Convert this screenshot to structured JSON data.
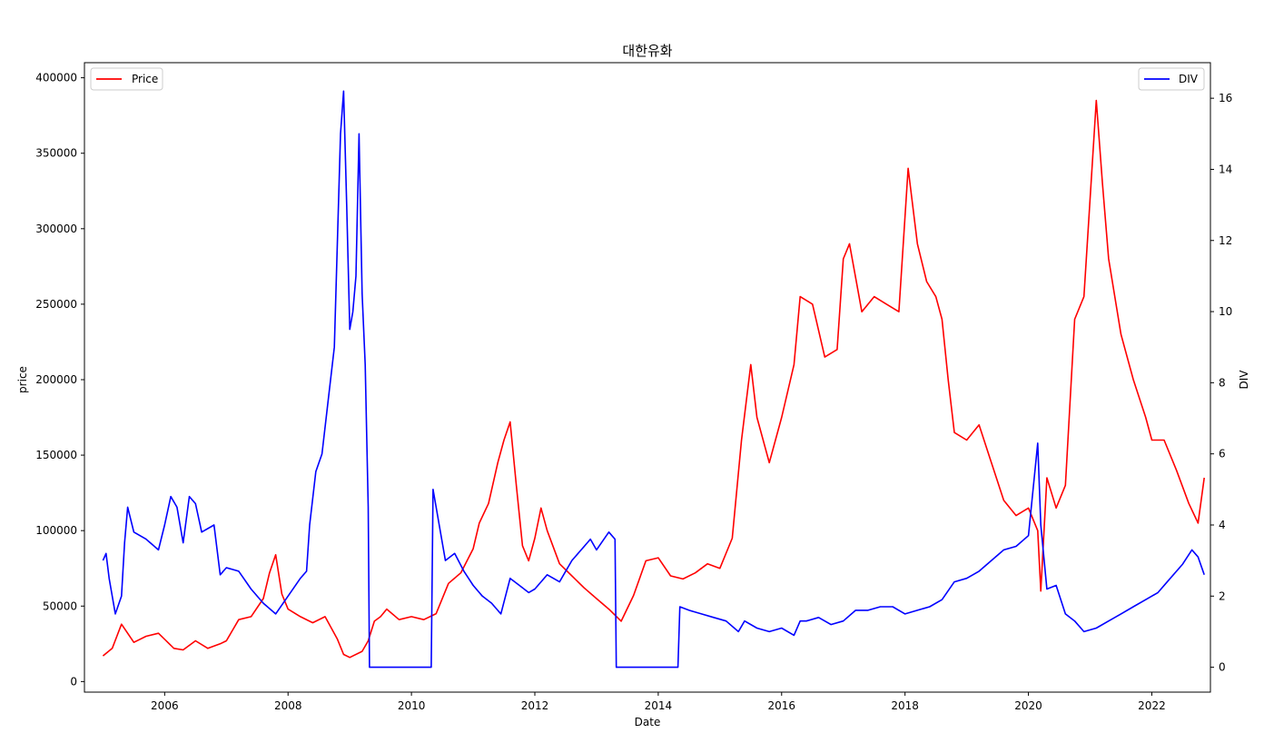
{
  "chart_data": {
    "type": "line",
    "title": "대한유화",
    "xlabel": "Date",
    "ylabel_left": "price",
    "ylabel_right": "DIV",
    "xlim": [
      2004.7,
      2022.95
    ],
    "ylim_left": [
      -7000,
      410000
    ],
    "ylim_right": [
      -0.7,
      17.0
    ],
    "x_ticks": [
      2006,
      2008,
      2010,
      2012,
      2014,
      2016,
      2018,
      2020,
      2022
    ],
    "y_ticks_left": [
      0,
      50000,
      100000,
      150000,
      200000,
      250000,
      300000,
      350000,
      400000
    ],
    "y_ticks_right": [
      0,
      2,
      4,
      6,
      8,
      10,
      12,
      14,
      16
    ],
    "grid": false,
    "legend_left": "upper-left",
    "legend_right": "upper-right",
    "series": [
      {
        "name": "Price",
        "axis": "left",
        "color": "#ff0000",
        "x": [
          2005.0,
          2005.15,
          2005.3,
          2005.5,
          2005.7,
          2005.9,
          2006.0,
          2006.15,
          2006.3,
          2006.5,
          2006.7,
          2006.9,
          2007.0,
          2007.2,
          2007.4,
          2007.6,
          2007.7,
          2007.8,
          2007.9,
          2008.0,
          2008.2,
          2008.4,
          2008.6,
          2008.8,
          2008.9,
          2009.0,
          2009.2,
          2009.3,
          2009.4,
          2009.5,
          2009.6,
          2009.8,
          2010.0,
          2010.2,
          2010.4,
          2010.6,
          2010.8,
          2011.0,
          2011.1,
          2011.25,
          2011.4,
          2011.5,
          2011.6,
          2011.7,
          2011.8,
          2011.9,
          2012.0,
          2012.1,
          2012.2,
          2012.4,
          2012.6,
          2012.8,
          2013.0,
          2013.2,
          2013.4,
          2013.6,
          2013.8,
          2014.0,
          2014.2,
          2014.4,
          2014.6,
          2014.8,
          2015.0,
          2015.2,
          2015.35,
          2015.5,
          2015.6,
          2015.8,
          2016.0,
          2016.2,
          2016.3,
          2016.5,
          2016.7,
          2016.9,
          2017.0,
          2017.1,
          2017.3,
          2017.5,
          2017.7,
          2017.9,
          2018.05,
          2018.2,
          2018.35,
          2018.5,
          2018.6,
          2018.7,
          2018.8,
          2019.0,
          2019.2,
          2019.4,
          2019.6,
          2019.8,
          2020.0,
          2020.15,
          2020.2,
          2020.3,
          2020.45,
          2020.6,
          2020.75,
          2020.9,
          2021.0,
          2021.1,
          2021.2,
          2021.3,
          2021.5,
          2021.7,
          2021.9,
          2022.0,
          2022.2,
          2022.4,
          2022.6,
          2022.75,
          2022.85
        ],
        "values": [
          17000,
          22000,
          38000,
          26000,
          30000,
          32000,
          28000,
          22000,
          21000,
          27000,
          22000,
          25000,
          27000,
          41000,
          43000,
          55000,
          72000,
          84000,
          58000,
          48000,
          43000,
          39000,
          43000,
          28000,
          18000,
          16000,
          20000,
          27000,
          40000,
          43000,
          48000,
          41000,
          43000,
          41000,
          45000,
          65000,
          72000,
          88000,
          105000,
          118000,
          145000,
          160000,
          172000,
          130000,
          90000,
          80000,
          95000,
          115000,
          100000,
          78000,
          70000,
          62000,
          55000,
          48000,
          40000,
          57000,
          80000,
          82000,
          70000,
          68000,
          72000,
          78000,
          75000,
          95000,
          160000,
          210000,
          175000,
          145000,
          175000,
          210000,
          255000,
          250000,
          215000,
          220000,
          280000,
          290000,
          245000,
          255000,
          250000,
          245000,
          340000,
          290000,
          265000,
          255000,
          240000,
          200000,
          165000,
          160000,
          170000,
          145000,
          120000,
          110000,
          115000,
          100000,
          60000,
          135000,
          115000,
          130000,
          240000,
          255000,
          320000,
          385000,
          330000,
          280000,
          230000,
          200000,
          175000,
          160000,
          160000,
          140000,
          118000,
          105000,
          135000
        ]
      },
      {
        "name": "DIV",
        "axis": "right",
        "color": "#0000ff",
        "x": [
          2005.0,
          2005.05,
          2005.1,
          2005.2,
          2005.3,
          2005.35,
          2005.4,
          2005.5,
          2005.7,
          2005.9,
          2006.0,
          2006.1,
          2006.2,
          2006.3,
          2006.4,
          2006.5,
          2006.6,
          2006.8,
          2006.9,
          2007.0,
          2007.2,
          2007.4,
          2007.6,
          2007.8,
          2008.0,
          2008.2,
          2008.3,
          2008.35,
          2008.45,
          2008.55,
          2008.65,
          2008.75,
          2008.85,
          2008.9,
          2008.95,
          2009.0,
          2009.05,
          2009.1,
          2009.15,
          2009.2,
          2009.25,
          2009.3,
          2009.32,
          2010.32,
          2010.35,
          2010.45,
          2010.55,
          2010.7,
          2010.85,
          2011.0,
          2011.15,
          2011.3,
          2011.45,
          2011.6,
          2011.75,
          2011.9,
          2012.0,
          2012.2,
          2012.4,
          2012.6,
          2012.8,
          2012.9,
          2013.0,
          2013.2,
          2013.3,
          2013.32,
          2014.32,
          2014.35,
          2014.5,
          2014.7,
          2014.9,
          2015.1,
          2015.3,
          2015.4,
          2015.6,
          2015.8,
          2016.0,
          2016.2,
          2016.3,
          2016.4,
          2016.6,
          2016.8,
          2017.0,
          2017.2,
          2017.4,
          2017.6,
          2017.8,
          2018.0,
          2018.2,
          2018.4,
          2018.6,
          2018.8,
          2019.0,
          2019.2,
          2019.4,
          2019.6,
          2019.8,
          2020.0,
          2020.15,
          2020.2,
          2020.3,
          2020.45,
          2020.6,
          2020.75,
          2020.9,
          2021.1,
          2021.3,
          2021.5,
          2021.7,
          2021.9,
          2022.1,
          2022.3,
          2022.5,
          2022.65,
          2022.75,
          2022.85
        ],
        "values": [
          3.0,
          3.2,
          2.5,
          1.5,
          2.0,
          3.5,
          4.5,
          3.8,
          3.6,
          3.3,
          4.0,
          4.8,
          4.5,
          3.5,
          4.8,
          4.6,
          3.8,
          4.0,
          2.6,
          2.8,
          2.7,
          2.2,
          1.8,
          1.5,
          2.0,
          2.5,
          2.7,
          4.0,
          5.5,
          6.0,
          7.5,
          9.0,
          15.0,
          16.2,
          13.0,
          9.5,
          10.0,
          11.0,
          15.0,
          10.5,
          8.5,
          4.5,
          0,
          0,
          5.0,
          4.0,
          3.0,
          3.2,
          2.7,
          2.3,
          2.0,
          1.8,
          1.5,
          2.5,
          2.3,
          2.1,
          2.2,
          2.6,
          2.4,
          3.0,
          3.4,
          3.6,
          3.3,
          3.8,
          3.6,
          0,
          0,
          1.7,
          1.6,
          1.5,
          1.4,
          1.3,
          1.0,
          1.3,
          1.1,
          1.0,
          1.1,
          0.9,
          1.3,
          1.3,
          1.4,
          1.2,
          1.3,
          1.6,
          1.6,
          1.7,
          1.7,
          1.5,
          1.6,
          1.7,
          1.9,
          2.4,
          2.5,
          2.7,
          3.0,
          3.3,
          3.4,
          3.7,
          6.3,
          4.0,
          2.2,
          2.3,
          1.5,
          1.3,
          1.0,
          1.1,
          1.3,
          1.5,
          1.7,
          1.9,
          2.1,
          2.5,
          2.9,
          3.3,
          3.1,
          2.6
        ]
      }
    ]
  }
}
